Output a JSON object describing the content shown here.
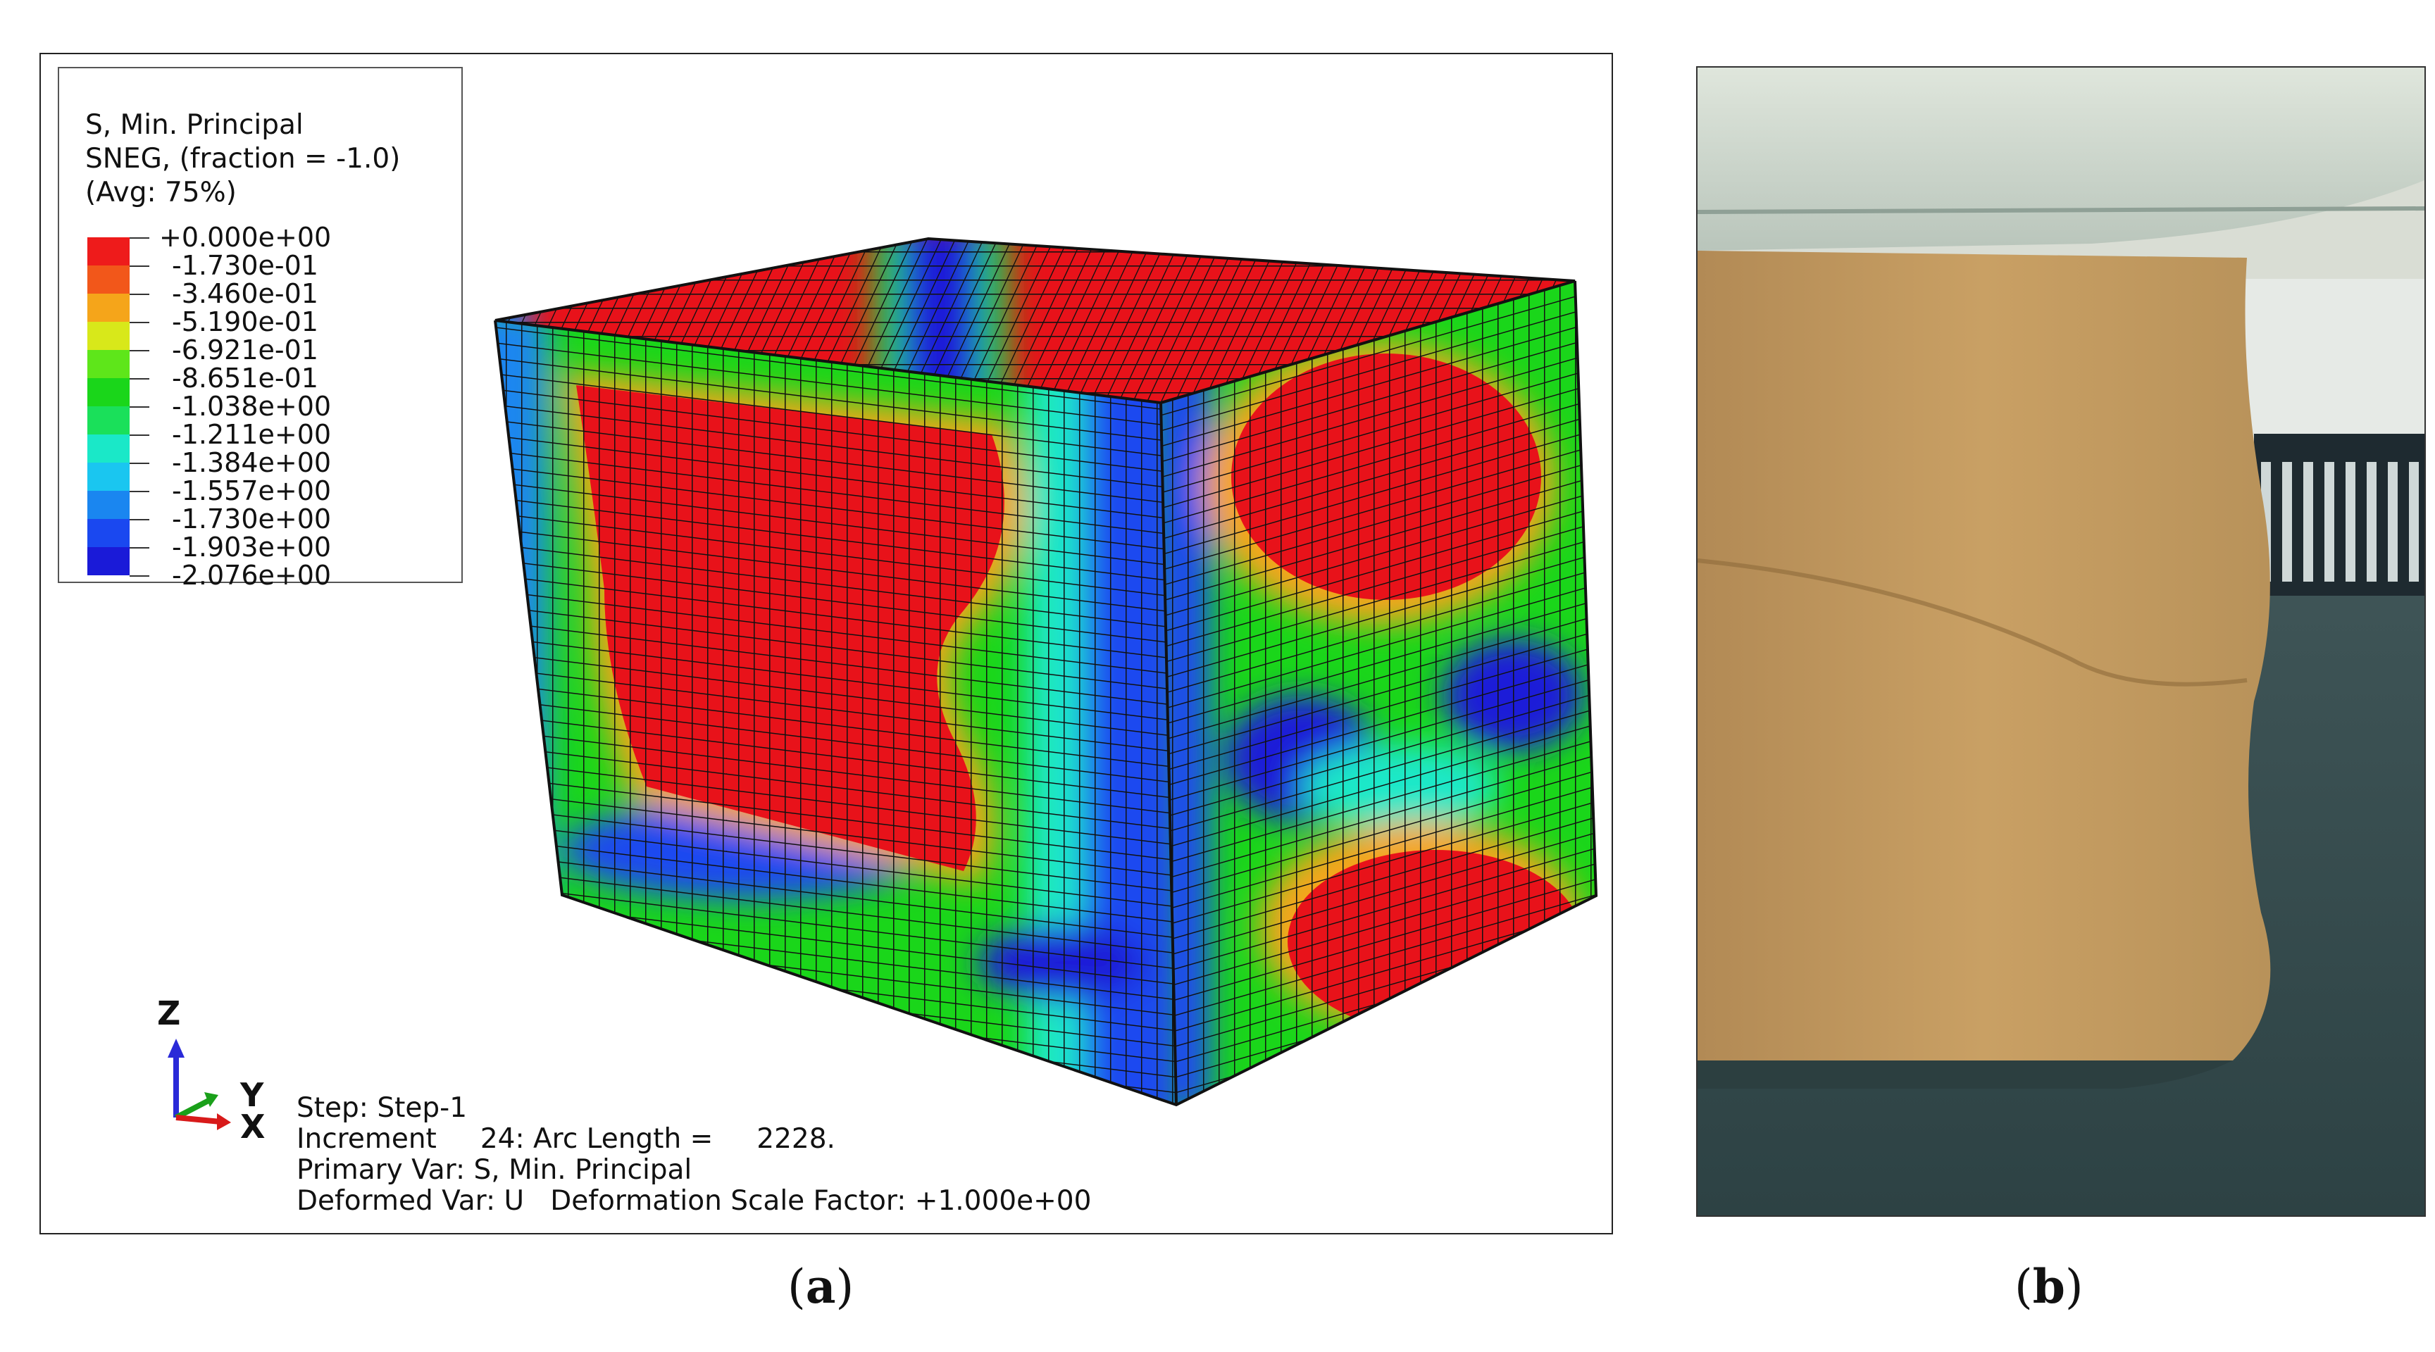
{
  "panel_a": {
    "legend": {
      "title_line1": "S, Min. Principal",
      "title_line2": "SNEG, (fraction = -1.0)",
      "title_line3": "(Avg: 75%)",
      "levels": [
        {
          "label": "+0.000e+00",
          "color": ""
        },
        {
          "label": "-1.730e-01",
          "color": "#ee1b1b"
        },
        {
          "label": "-3.460e-01",
          "color": "#f2571a"
        },
        {
          "label": "-5.190e-01",
          "color": "#f5a51a"
        },
        {
          "label": "-6.921e-01",
          "color": "#d8e81a"
        },
        {
          "label": "-8.651e-01",
          "color": "#5ee61a"
        },
        {
          "label": "-1.038e+00",
          "color": "#1ad61a"
        },
        {
          "label": "-1.211e+00",
          "color": "#1ae05a"
        },
        {
          "label": "-1.384e+00",
          "color": "#1ae8c8"
        },
        {
          "label": "-1.557e+00",
          "color": "#1ac6f0"
        },
        {
          "label": "-1.730e+00",
          "color": "#1a86f0"
        },
        {
          "label": "-1.903e+00",
          "color": "#1a48f0"
        },
        {
          "label": "-2.076e+00",
          "color": "#1a1ad8"
        }
      ]
    },
    "triad": {
      "z": "Z",
      "y": "Y",
      "x": "X"
    },
    "info": {
      "step": "Step: Step-1",
      "increment": "Increment     24: Arc Length =     2228.",
      "primary_var": "Primary Var: S, Min. Principal",
      "deformed_var": "Deformed Var: U   Deformation Scale Factor: +1.000e+00"
    },
    "caption_letter": "a"
  },
  "panel_b": {
    "caption_letter": "b"
  },
  "colors": {
    "red": "#e8121a",
    "orange": "#f5a51a",
    "yellow": "#d8e81a",
    "green": "#1ad61a",
    "cyan": "#1ae8c8",
    "blue": "#1a1ad8",
    "box_tan": "#c9a064",
    "mesh_line": "#111111"
  }
}
